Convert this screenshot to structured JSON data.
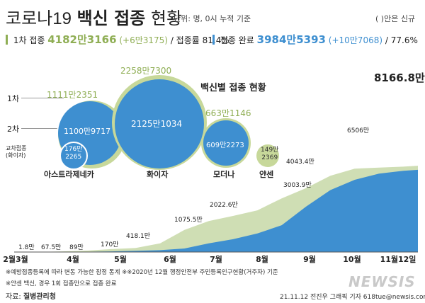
{
  "header": {
    "title_light": "코로나19",
    "title_bold": "백신 접종",
    "title_tail": "현황",
    "unit_note": "단위: 명, 0시 누적 기준",
    "paren_note": "( )안은 신규"
  },
  "summary": {
    "first": {
      "label": "1차 접종",
      "value": "4182만3166",
      "new": "(+6만3175)",
      "rate_label": "/ 접종률 81.4%"
    },
    "complete": {
      "label": "접종 완료",
      "value": "3984만5393",
      "new": "(+10만7068)",
      "rate_label": "/ 77.6%"
    }
  },
  "bubble_panel": {
    "title": "백신별 접종 현황",
    "row_label_first": "1차",
    "row_label_second": "2차",
    "cross_label": "교차접종\n(화이자)",
    "vaccines": [
      {
        "name": "아스트라제네카",
        "first": "1111만2351",
        "second": "1100만9717",
        "cross": "176만\n2265"
      },
      {
        "name": "화이자",
        "first": "2258만7300",
        "second": "2125만1034"
      },
      {
        "name": "모더나",
        "first": "663만1146",
        "second": "609만2273"
      },
      {
        "name": "얀센",
        "first": "149만\n2369"
      }
    ]
  },
  "chart_data": {
    "type": "area",
    "x_ticks": [
      "2월3월",
      "4월",
      "5월",
      "6월",
      "7월",
      "8월",
      "9월",
      "10월",
      "11월12일"
    ],
    "series": [
      {
        "name": "1차 접종",
        "color": "#cfdeb4",
        "points": [
          [
            0,
            0
          ],
          [
            0.5,
            1.8
          ],
          [
            1,
            30
          ],
          [
            1.5,
            67.5
          ],
          [
            2,
            140
          ],
          [
            2.5,
            200
          ],
          [
            3,
            418.1
          ],
          [
            3.5,
            1075.5
          ],
          [
            4,
            1500
          ],
          [
            4.5,
            1750
          ],
          [
            5,
            2022.6
          ],
          [
            5.5,
            2600
          ],
          [
            6,
            3100
          ],
          [
            6.5,
            3700
          ],
          [
            7,
            4043.4
          ],
          [
            7.5,
            4095
          ],
          [
            8,
            4140
          ],
          [
            8.3,
            4182.3
          ]
        ]
      },
      {
        "name": "접종 완료",
        "color": "#3e8fd0",
        "points": [
          [
            0,
            0
          ],
          [
            1,
            5
          ],
          [
            2,
            30
          ],
          [
            3,
            89
          ],
          [
            3.5,
            170
          ],
          [
            4,
            420
          ],
          [
            4.5,
            620
          ],
          [
            5,
            900
          ],
          [
            5.5,
            1300
          ],
          [
            6,
            2200
          ],
          [
            6.5,
            3003.9
          ],
          [
            7,
            3500
          ],
          [
            7.5,
            3800
          ],
          [
            8,
            3940
          ],
          [
            8.3,
            3984.5
          ]
        ]
      }
    ],
    "labels": [
      {
        "text": "1.8만",
        "x": 0.5,
        "y": 1.8
      },
      {
        "text": "67.5만",
        "x": 1.5,
        "y": 67.5
      },
      {
        "text": "89만",
        "x": 2.0,
        "y": 89
      },
      {
        "text": "170만",
        "x": 2.6,
        "y": 170
      },
      {
        "text": "418.1만",
        "x": 3.0,
        "y": 418.1
      },
      {
        "text": "1075.5만",
        "x": 3.5,
        "y": 1075.5
      },
      {
        "text": "2022.6만",
        "x": 5.0,
        "y": 2022.6
      },
      {
        "text": "3003.9만",
        "x": 6.6,
        "y": 3003.9
      },
      {
        "text": "4043.4만",
        "x": 7.0,
        "y": 4043.4
      },
      {
        "text": "6506만",
        "x": 7.9,
        "y": 6506
      },
      {
        "text": "8166.8만",
        "x": 8.3,
        "y": 8166.8
      }
    ],
    "ylim": [
      0,
      8166.8
    ]
  },
  "footer": {
    "note1": "※예방접종등록에 따라 변동 가능한 잠정 통계 ※※2020년 12월 행정안전부 주민등록인구현황(거주자) 기준",
    "note2": "※얀센 백신, 경우 1회 접종만으로 접종 완료",
    "source_label": "자료: ",
    "source_name": "질병관리청",
    "credit": "21.11.12 전진우 그래픽 기자 618tue@newsis.com",
    "logo": "NEWSIS"
  },
  "colors": {
    "green": "#8fae54",
    "blue": "#3e8fd0",
    "bubble_green": "#c7d89a",
    "light_area": "#dbe6c8"
  }
}
